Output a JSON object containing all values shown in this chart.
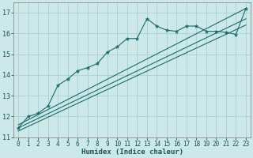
{
  "xlabel": "Humidex (Indice chaleur)",
  "xlim": [
    -0.5,
    23.5
  ],
  "ylim": [
    11,
    17.5
  ],
  "yticks": [
    11,
    12,
    13,
    14,
    15,
    16,
    17
  ],
  "xticks": [
    0,
    1,
    2,
    3,
    4,
    5,
    6,
    7,
    8,
    9,
    10,
    11,
    12,
    13,
    14,
    15,
    16,
    17,
    18,
    19,
    20,
    21,
    22,
    23
  ],
  "bg_color": "#cce8e8",
  "grid_color": "#a8d0d0",
  "line_color": "#1a6b6b",
  "main_series_x": [
    0,
    1,
    2,
    3,
    4,
    5,
    6,
    7,
    8,
    9,
    10,
    11,
    12,
    13,
    14,
    15,
    16,
    17,
    18,
    19,
    20,
    21,
    22,
    23
  ],
  "main_series_y": [
    11.45,
    12.0,
    12.15,
    12.5,
    13.5,
    13.8,
    14.2,
    14.35,
    14.55,
    15.1,
    15.35,
    15.75,
    15.75,
    16.7,
    16.35,
    16.15,
    16.1,
    16.35,
    16.35,
    16.1,
    16.1,
    16.05,
    15.95,
    17.2
  ],
  "line1_x": [
    0,
    23
  ],
  "line1_y": [
    11.6,
    17.2
  ],
  "line2_x": [
    0,
    23
  ],
  "line2_y": [
    11.45,
    16.7
  ],
  "line3_x": [
    0,
    23
  ],
  "line3_y": [
    11.3,
    16.4
  ],
  "tick_fontsize": 5.5,
  "xlabel_fontsize": 6.5
}
